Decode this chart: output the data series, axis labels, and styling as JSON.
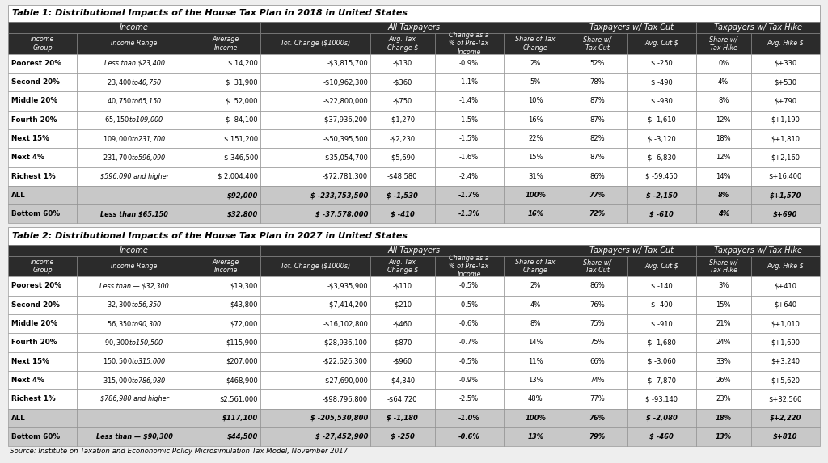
{
  "title1": "Table 1: Distributional Impacts of the House Tax Plan in 2018 in United States",
  "title2": "Table 2: Distributional Impacts of the House Tax Plan in 2027 in United States",
  "source": "Source: Institute on Taxation and Econonomic Policy Microsimulation Tax Model, November 2017",
  "col_headers": [
    "Income\nGroup",
    "Income Range",
    "Average\nIncome",
    "Tot. Change ($1000s)",
    "Avg. Tax\nChange $",
    "Change as a\n% of Pre-Tax\nIncome",
    "Share of Tax\nChange",
    "Share w/\nTax Cut",
    "Avg. Cut $",
    "Share w/\nTax Hike",
    "Avg. Hike $"
  ],
  "group_spans": [
    [
      0,
      3,
      "Income"
    ],
    [
      3,
      7,
      "All Taxpayers"
    ],
    [
      7,
      9,
      "Taxpayers w/ Tax Cut"
    ],
    [
      9,
      11,
      "Taxpayers w/ Tax Hike"
    ]
  ],
  "table1_rows": [
    [
      "Poorest 20%",
      "Less than $23,400",
      "$ 14,200",
      "-$3,815,700",
      "-$130",
      "-0.9%",
      "2%",
      "52%",
      "$ -250",
      "0%",
      "$+330"
    ],
    [
      "Second 20%",
      "$23,400 to $40,750",
      "$  31,900",
      "-$10,962,300",
      "-$360",
      "-1.1%",
      "5%",
      "78%",
      "$ -490",
      "4%",
      "$+530"
    ],
    [
      "Middle 20%",
      "$40,750 to $65,150",
      "$  52,000",
      "-$22,800,000",
      "-$750",
      "-1.4%",
      "10%",
      "87%",
      "$ -930",
      "8%",
      "$+790"
    ],
    [
      "Fourth 20%",
      "$65,150 to $109,000",
      "$  84,100",
      "-$37,936,200",
      "-$1,270",
      "-1.5%",
      "16%",
      "87%",
      "$ -1,610",
      "12%",
      "$+1,190"
    ],
    [
      "Next 15%",
      "$109,000 to $231,700",
      "$ 151,200",
      "-$50,395,500",
      "-$2,230",
      "-1.5%",
      "22%",
      "82%",
      "$ -3,120",
      "18%",
      "$+1,810"
    ],
    [
      "Next 4%",
      "$231,700 to $596,090",
      "$ 346,500",
      "-$35,054,700",
      "-$5,690",
      "-1.6%",
      "15%",
      "87%",
      "$ -6,830",
      "12%",
      "$+2,160"
    ],
    [
      "Richest 1%",
      "$596,090 and higher",
      "$ 2,004,400",
      "-$72,781,300",
      "-$48,580",
      "-2.4%",
      "31%",
      "86%",
      "$ -59,450",
      "14%",
      "$+16,400"
    ],
    [
      "ALL",
      "",
      "$92,000",
      "$ -233,753,500",
      "$ -1,530",
      "-1.7%",
      "100%",
      "77%",
      "$ -2,150",
      "8%",
      "$+1,570"
    ],
    [
      "Bottom 60%",
      "Less than $65,150",
      "$32,800",
      "$ -37,578,000",
      "$ -410",
      "-1.3%",
      "16%",
      "72%",
      "$ -610",
      "4%",
      "$+690"
    ]
  ],
  "table2_rows": [
    [
      "Poorest 20%",
      "Less than — $32,300",
      "$19,300",
      "-$3,935,900",
      "-$110",
      "-0.5%",
      "2%",
      "86%",
      "$ -140",
      "3%",
      "$+410"
    ],
    [
      "Second 20%",
      "$32,300 to $56,350",
      "$43,800",
      "-$7,414,200",
      "-$210",
      "-0.5%",
      "4%",
      "76%",
      "$ -400",
      "15%",
      "$+640"
    ],
    [
      "Middle 20%",
      "$56,350 to $90,300",
      "$72,000",
      "-$16,102,800",
      "-$460",
      "-0.6%",
      "8%",
      "75%",
      "$ -910",
      "21%",
      "$+1,010"
    ],
    [
      "Fourth 20%",
      "$90,300 to $150,500",
      "$115,900",
      "-$28,936,100",
      "-$870",
      "-0.7%",
      "14%",
      "75%",
      "$ -1,680",
      "24%",
      "$+1,690"
    ],
    [
      "Next 15%",
      "$150,500 to $315,000",
      "$207,000",
      "-$22,626,300",
      "-$960",
      "-0.5%",
      "11%",
      "66%",
      "$ -3,060",
      "33%",
      "$+3,240"
    ],
    [
      "Next 4%",
      "$315,000 to $786,980",
      "$468,900",
      "-$27,690,000",
      "-$4,340",
      "-0.9%",
      "13%",
      "74%",
      "$ -7,870",
      "26%",
      "$+5,620"
    ],
    [
      "Richest 1%",
      "$786,980 and higher",
      "$2,561,000",
      "-$98,796,800",
      "-$64,720",
      "-2.5%",
      "48%",
      "77%",
      "$ -93,140",
      "23%",
      "$+32,560"
    ],
    [
      "ALL",
      "",
      "$117,100",
      "$ -205,530,800",
      "$ -1,180",
      "-1.0%",
      "100%",
      "76%",
      "$ -2,080",
      "18%",
      "$+2,220"
    ],
    [
      "Bottom 60%",
      "Less than — $90,300",
      "$44,500",
      "$ -27,452,900",
      "$ -250",
      "-0.6%",
      "13%",
      "79%",
      "$ -460",
      "13%",
      "$+810"
    ]
  ],
  "col_widths_rel": [
    7.5,
    12.5,
    7.5,
    12.0,
    7.0,
    7.5,
    7.0,
    6.5,
    7.5,
    6.0,
    7.5
  ],
  "dark_bg": "#2b2b2b",
  "light_bg": "#c8c8c8",
  "white_bg": "#ffffff",
  "alt_bg": "#e8e8e8",
  "text_white": "#ffffff",
  "text_dark": "#000000",
  "border": "#888888",
  "title_bg": "#ffffff"
}
